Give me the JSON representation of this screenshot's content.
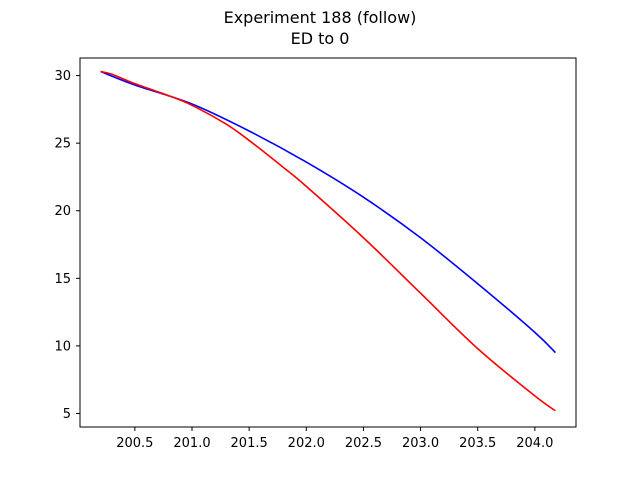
{
  "chart_data": {
    "type": "line",
    "title": "Experiment 188 (follow)",
    "subtitle": "ED to 0",
    "xlabel": "",
    "ylabel": "",
    "xlim": [
      200.02,
      204.36
    ],
    "ylim": [
      4.0,
      31.3
    ],
    "xticks": [
      200.5,
      201.0,
      201.5,
      202.0,
      202.5,
      203.0,
      203.5,
      204.0
    ],
    "xtick_labels": [
      "200.5",
      "201.0",
      "201.5",
      "202.0",
      "202.5",
      "203.0",
      "203.5",
      "204.0"
    ],
    "yticks": [
      5,
      10,
      15,
      20,
      25,
      30
    ],
    "ytick_labels": [
      "5",
      "10",
      "15",
      "20",
      "25",
      "30"
    ],
    "grid": false,
    "legend": "none",
    "series": [
      {
        "color": "#0000ff",
        "x": [
          200.2,
          200.5,
          201.0,
          201.5,
          202.0,
          202.5,
          203.0,
          203.5,
          204.0,
          204.18
        ],
        "y": [
          30.3,
          29.3,
          27.9,
          25.9,
          23.6,
          21.0,
          18.0,
          14.6,
          11.0,
          9.5
        ]
      },
      {
        "color": "#ff0000",
        "x": [
          200.2,
          200.3,
          200.5,
          200.8,
          201.0,
          201.3,
          201.5,
          201.8,
          202.0,
          202.5,
          203.0,
          203.5,
          204.0,
          204.18
        ],
        "y": [
          30.3,
          30.1,
          29.4,
          28.5,
          27.8,
          26.4,
          25.2,
          23.2,
          21.8,
          18.0,
          13.9,
          9.8,
          6.3,
          5.2
        ]
      }
    ]
  }
}
